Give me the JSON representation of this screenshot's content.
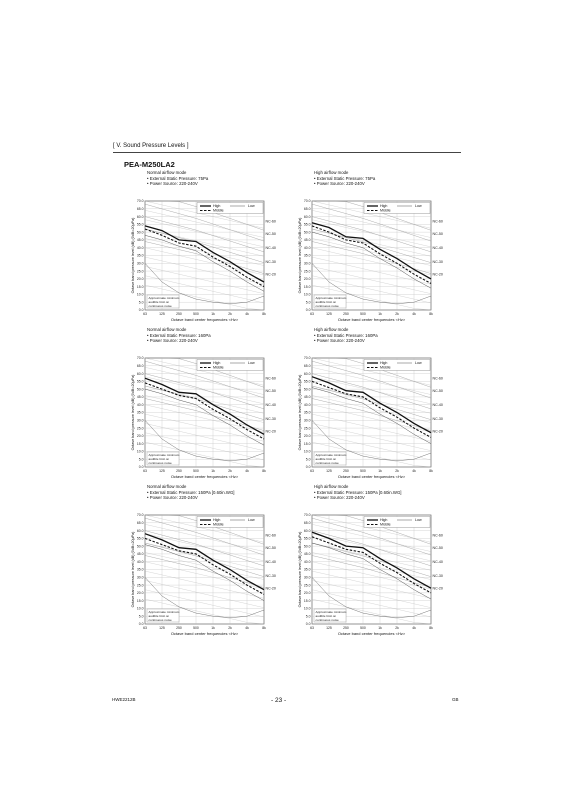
{
  "page": {
    "section_header": "[ V. Sound Pressure Levels ]",
    "model": "PEA-M250LA2",
    "footer_left": "HWE2212B",
    "page_number": "- 23 -",
    "footer_right": "GB"
  },
  "chart_common": {
    "y_label": "Octave band pressure level (dB) (0dB=20μPa)",
    "x_label": "Octave band center frequencies <Hz>",
    "x_ticks": [
      "63",
      "125",
      "250",
      "500",
      "1k",
      "2k",
      "4k",
      "8k"
    ],
    "y_ticks": [
      "0.0",
      "5.0",
      "10.0",
      "15.0",
      "20.0",
      "25.0",
      "30.0",
      "35.0",
      "40.0",
      "45.0",
      "50.0",
      "55.0",
      "60.0",
      "65.0",
      "70.0"
    ],
    "nc_labels": [
      "NC-60",
      "NC-50",
      "NC-40",
      "NC-30",
      "NC-20"
    ],
    "legend": {
      "high": "High",
      "middle": "Middle",
      "low": "Low"
    },
    "note": [
      "Approximate minimum",
      "audible limit on",
      "continuous noise"
    ]
  },
  "chart_data": [
    {
      "type": "line",
      "caption": [
        "Normal airflow mode",
        "• External Static Pressure: 75Pa",
        "• Power Source: 220-240V"
      ],
      "categories": [
        "63",
        "125",
        "250",
        "500",
        "1k",
        "2k",
        "4k",
        "8k"
      ],
      "ylim": [
        0,
        70
      ],
      "series": [
        {
          "name": "High",
          "values": [
            54,
            51,
            45,
            44,
            37,
            31,
            24,
            18
          ]
        },
        {
          "name": "Middle",
          "values": [
            52,
            48,
            43,
            41,
            34,
            28,
            21,
            15
          ]
        },
        {
          "name": "Low",
          "values": [
            48,
            45,
            41,
            38,
            31,
            25,
            18,
            12
          ]
        }
      ]
    },
    {
      "type": "line",
      "caption": [
        "High airflow mode",
        "• External Static Pressure: 75Pa",
        "• Power Source: 220-240V"
      ],
      "categories": [
        "63",
        "125",
        "250",
        "500",
        "1k",
        "2k",
        "4k",
        "8k"
      ],
      "ylim": [
        0,
        70
      ],
      "series": [
        {
          "name": "High",
          "values": [
            56,
            53,
            47,
            46,
            39,
            33,
            26,
            20
          ]
        },
        {
          "name": "Middle",
          "values": [
            54,
            50,
            45,
            43,
            36,
            30,
            23,
            17
          ]
        },
        {
          "name": "Low",
          "values": [
            50,
            47,
            43,
            40,
            33,
            27,
            20,
            14
          ]
        }
      ]
    },
    {
      "type": "line",
      "caption": [
        "Normal airflow mode",
        "• External Static Pressure: 160Pa",
        "• Power Source: 220-240V"
      ],
      "categories": [
        "63",
        "125",
        "250",
        "500",
        "1k",
        "2k",
        "4k",
        "8k"
      ],
      "ylim": [
        0,
        70
      ],
      "series": [
        {
          "name": "High",
          "values": [
            57,
            53,
            48,
            47,
            40,
            34,
            27,
            21
          ]
        },
        {
          "name": "Middle",
          "values": [
            54,
            50,
            46,
            44,
            37,
            31,
            24,
            18
          ]
        },
        {
          "name": "Low",
          "values": [
            50,
            47,
            43,
            40,
            33,
            27,
            20,
            14
          ]
        }
      ]
    },
    {
      "type": "line",
      "caption": [
        "High airflow mode",
        "• External Static Pressure: 160Pa",
        "• Power Source: 220-240V"
      ],
      "categories": [
        "63",
        "125",
        "250",
        "500",
        "1k",
        "2k",
        "4k",
        "8k"
      ],
      "ylim": [
        0,
        70
      ],
      "series": [
        {
          "name": "High",
          "values": [
            58,
            54,
            49,
            48,
            41,
            35,
            28,
            22
          ]
        },
        {
          "name": "Middle",
          "values": [
            55,
            51,
            47,
            45,
            38,
            32,
            25,
            19
          ]
        },
        {
          "name": "Low",
          "values": [
            51,
            48,
            44,
            41,
            34,
            28,
            21,
            15
          ]
        }
      ]
    },
    {
      "type": "line",
      "caption": [
        "Normal airflow mode",
        "• External Static Pressure: 150Pa [0.60in.WG]",
        "• Power Source: 220-240V"
      ],
      "categories": [
        "63",
        "125",
        "250",
        "500",
        "1k",
        "2k",
        "4k",
        "8k"
      ],
      "ylim": [
        0,
        70
      ],
      "series": [
        {
          "name": "High",
          "values": [
            58,
            54,
            49,
            48,
            41,
            35,
            28,
            22
          ]
        },
        {
          "name": "Middle",
          "values": [
            55,
            51,
            47,
            45,
            38,
            32,
            25,
            19
          ]
        },
        {
          "name": "Low",
          "values": [
            51,
            48,
            44,
            41,
            34,
            28,
            21,
            15
          ]
        }
      ]
    },
    {
      "type": "line",
      "caption": [
        "High airflow mode",
        "• External Static Pressure: 150Pa [0.60in.WG]",
        "• Power Source: 220-240V"
      ],
      "categories": [
        "63",
        "125",
        "250",
        "500",
        "1k",
        "2k",
        "4k",
        "8k"
      ],
      "ylim": [
        0,
        70
      ],
      "series": [
        {
          "name": "High",
          "values": [
            59,
            55,
            50,
            49,
            42,
            36,
            29,
            23
          ]
        },
        {
          "name": "Middle",
          "values": [
            56,
            52,
            48,
            46,
            39,
            33,
            26,
            20
          ]
        },
        {
          "name": "Low",
          "values": [
            52,
            49,
            45,
            42,
            35,
            29,
            22,
            16
          ]
        }
      ]
    }
  ]
}
